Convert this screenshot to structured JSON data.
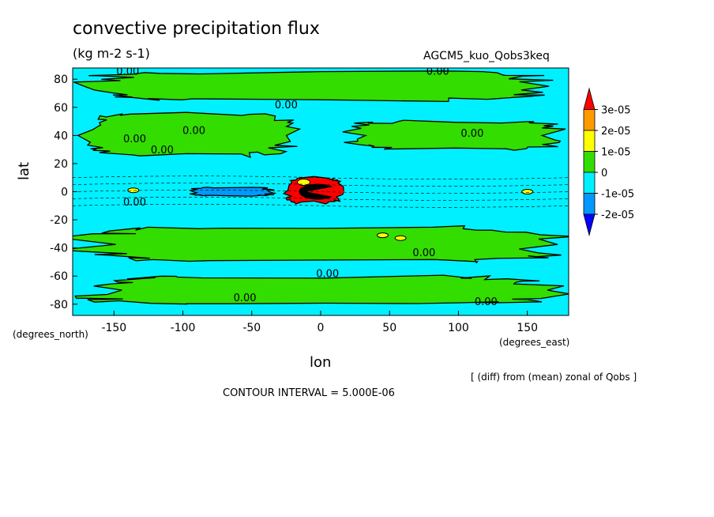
{
  "chart_data": {
    "type": "heatmap",
    "title": "convective precipitation flux",
    "units": "(kg m-2 s-1)",
    "dataset_label": "AGCM5_kuo_Qobs3keq",
    "xlabel": "lon",
    "ylabel": "lat",
    "x_units": "(degrees_east)",
    "y_units": "(degrees_north)",
    "xlim": [
      -180,
      180
    ],
    "ylim": [
      -88,
      88
    ],
    "xticks": [
      -150,
      -100,
      -50,
      0,
      50,
      100,
      150
    ],
    "yticks": [
      -80,
      -60,
      -40,
      -20,
      0,
      20,
      40,
      60,
      80
    ],
    "contour_interval_text": "CONTOUR INTERVAL = 5.000E-06",
    "footnote": "[ (diff) from (mean) zonal of Qobs ]",
    "colorbar": {
      "labels": [
        "3e-05",
        "2e-05",
        "1e-05",
        "0",
        "-1e-05",
        "-2e-05"
      ],
      "colors": [
        "#ff0000",
        "#ff9900",
        "#ffff00",
        "#33dd00",
        "#00f0ff",
        "#0099ff",
        "#0000ff"
      ]
    },
    "contour_labels": [
      {
        "text": "0.00",
        "lon": -140,
        "lat": 86
      },
      {
        "text": "0.00",
        "lon": 85,
        "lat": 86
      },
      {
        "text": "0.00",
        "lon": -25,
        "lat": 62
      },
      {
        "text": "0.00",
        "lon": -92,
        "lat": 44
      },
      {
        "text": "0.00",
        "lon": -135,
        "lat": 38
      },
      {
        "text": "0.00",
        "lon": -115,
        "lat": 30
      },
      {
        "text": "0.00",
        "lon": 110,
        "lat": 42
      },
      {
        "text": "0.00",
        "lon": -135,
        "lat": -7
      },
      {
        "text": "0.00",
        "lon": 75,
        "lat": -43
      },
      {
        "text": "0.00",
        "lon": 5,
        "lat": -58
      },
      {
        "text": "0.00",
        "lon": -55,
        "lat": -75
      },
      {
        "text": "0.00",
        "lon": 120,
        "lat": -78
      }
    ],
    "field_regions": [
      {
        "level": "0 to 1e-05",
        "lon": [
          -175,
          175
        ],
        "lat": [
          65,
          85
        ]
      },
      {
        "level": "0 to 1e-05",
        "lon": [
          -175,
          -20
        ],
        "lat": [
          25,
          55
        ]
      },
      {
        "level": "0 to 1e-05",
        "lon": [
          20,
          175
        ],
        "lat": [
          30,
          50
        ]
      },
      {
        "level": "0 to 1e-05",
        "lon": [
          -175,
          175
        ],
        "lat": [
          -50,
          -25
        ]
      },
      {
        "level": "0 to 1e-05",
        "lon": [
          -170,
          175
        ],
        "lat": [
          -80,
          -60
        ]
      },
      {
        "level": "above 3e-05",
        "lon": [
          -25,
          15
        ],
        "lat": [
          -8,
          10
        ]
      },
      {
        "level": "-2e-05 to -1e-05",
        "lon": [
          -95,
          -35
        ],
        "lat": [
          -3,
          3
        ]
      }
    ]
  }
}
